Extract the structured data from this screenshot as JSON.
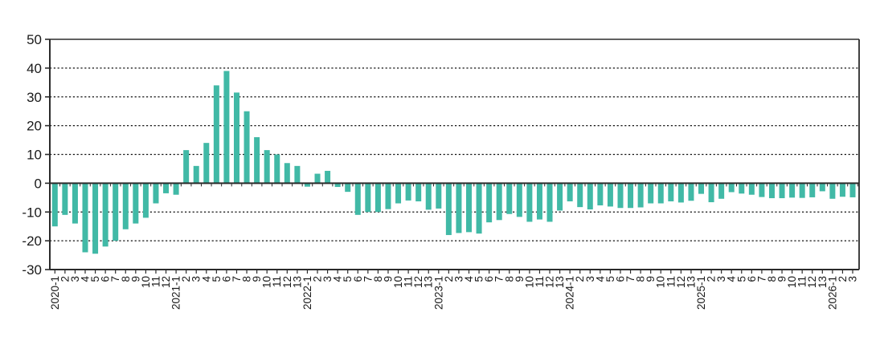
{
  "chart_data": {
    "type": "bar",
    "title": "",
    "xlabel": "",
    "ylabel": "",
    "ylim": [
      -30,
      50
    ],
    "yticks": [
      50,
      40,
      30,
      20,
      10,
      0,
      -10,
      -20,
      -30
    ],
    "grid": "horizontal-dotted",
    "legend": "none",
    "bar_color": "#41B9A6",
    "axis_color": "#2b2b2b",
    "grid_color": "#111111",
    "categories": [
      "2020-1",
      "2",
      "3",
      "4",
      "5",
      "6",
      "7",
      "8",
      "9",
      "10",
      "11",
      "12",
      "2021-1",
      "2",
      "3",
      "4",
      "5",
      "6",
      "7",
      "8",
      "9",
      "10",
      "11",
      "12",
      "13",
      "2022-1",
      "2",
      "3",
      "4",
      "5",
      "6",
      "7",
      "8",
      "9",
      "10",
      "11",
      "12",
      "13",
      "2023-1",
      "2",
      "3",
      "4",
      "5",
      "6",
      "7",
      "8",
      "9",
      "10",
      "11",
      "12",
      "13",
      "2024-1",
      "2",
      "3",
      "4",
      "5",
      "6",
      "7",
      "8",
      "9",
      "10",
      "11",
      "12",
      "13",
      "2025-1",
      "2",
      "3",
      "4",
      "5",
      "6",
      "7",
      "8",
      "9",
      "10",
      "11",
      "12",
      "13",
      "2026-1",
      "2",
      "3"
    ],
    "values": [
      -15,
      -11,
      -14,
      -24,
      -24.5,
      -22,
      -20,
      -16,
      -14,
      -12,
      -7,
      -3.5,
      -4,
      11.5,
      6,
      14,
      34,
      39,
      31.5,
      25,
      16,
      11.5,
      10,
      7,
      6,
      -1.2,
      3.3,
      4.3,
      -1.3,
      -3,
      -11,
      -10,
      -10,
      -9,
      -7,
      -6,
      -6.3,
      -9.2,
      -8.8,
      -18,
      -17.3,
      -17,
      -17.5,
      -13.6,
      -12.8,
      -10.7,
      -11.7,
      -13.4,
      -12.6,
      -13.4,
      -9.5,
      -6.3,
      -8.3,
      -9.1,
      -7.7,
      -8.1,
      -8.6,
      -8.6,
      -8.4,
      -7,
      -7,
      -6.3,
      -6.7,
      -6.1,
      -3.7,
      -6.6,
      -5.4,
      -3.1,
      -3.6,
      -4,
      -4.8,
      -5.2,
      -5.2,
      -5,
      -5.1,
      -4.9,
      -2.8,
      -5.4,
      -4.7,
      -4.9
    ]
  },
  "layout_note_visible_text_only": "Axis tick labels only; chart has no title or legend."
}
